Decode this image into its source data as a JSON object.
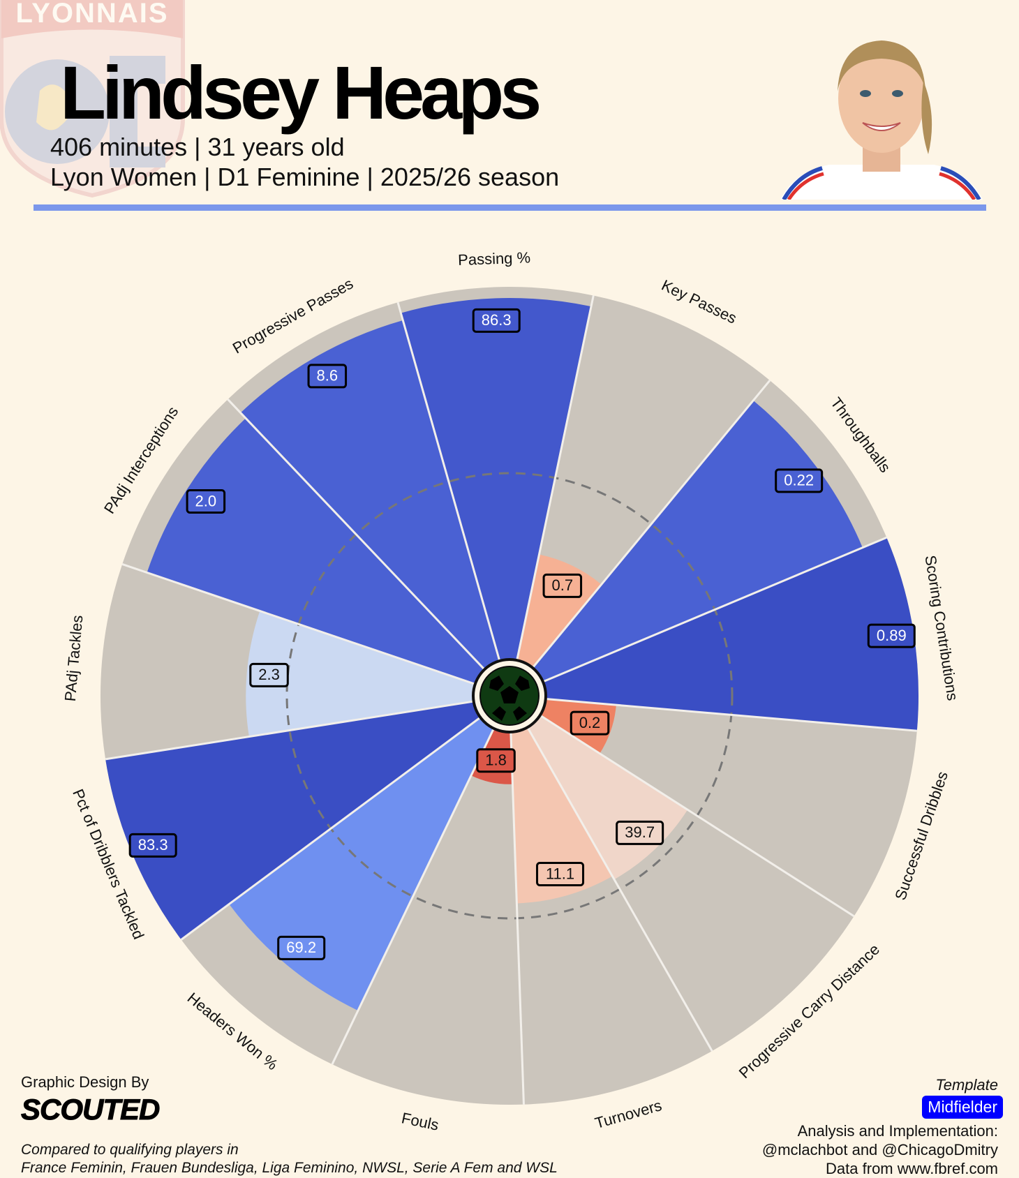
{
  "header": {
    "player_name": "Lindsey Heaps",
    "line1": "406 minutes | 31 years old",
    "line2": "Lyon Women | D1 Feminine | 2025/26 season",
    "crest_text": "OLYMPIQUE LYONNAIS"
  },
  "footer": {
    "credit": "Graphic Design By",
    "brand": "SCOUTED",
    "compared_line1": "Compared to qualifying players in",
    "compared_line2": "France Feminin, Frauen Bundesliga, Liga Feminino, NWSL, Serie A Fem and WSL",
    "template_label": "Template",
    "template_value": "Midfielder",
    "analysis_line1": "Analysis and Implementation:",
    "analysis_line2": "@mclachbot and @ChicagoDmitry",
    "analysis_line3": "Data from www.fbref.com"
  },
  "colors": {
    "background": "#fdf5e6",
    "slice_background": "#cbc5bc",
    "accent_rule": "#7b97eb",
    "badge": "#0000ff"
  },
  "chart_data": {
    "type": "pizza",
    "percentile_range": [
      0,
      100
    ],
    "reference_ring_percentile": 50,
    "metrics": [
      {
        "label": "Passing %",
        "value": "86.3",
        "percentile": 97,
        "color": "#4358cc"
      },
      {
        "label": "Key Passes",
        "value": "0.7",
        "percentile": 29,
        "color": "#f6b194"
      },
      {
        "label": "Throughballs",
        "value": "0.22",
        "percentile": 93,
        "color": "#4a61d3"
      },
      {
        "label": "Scoring Contributions",
        "value": "0.89",
        "percentile": 100,
        "color": "#3a4ec4"
      },
      {
        "label": "Successful Dribbles",
        "value": "0.2",
        "percentile": 19,
        "color": "#ee8263"
      },
      {
        "label": "Progressive Carry Distance",
        "value": "39.7",
        "percentile": 47,
        "color": "#f0d6c9"
      },
      {
        "label": "Turnovers",
        "value": "11.1",
        "percentile": 46,
        "color": "#f4c6b1"
      },
      {
        "label": "Fouls",
        "value": "1.8",
        "percentile": 14,
        "color": "#db5748"
      },
      {
        "label": "Headers Won %",
        "value": "69.2",
        "percentile": 84,
        "color": "#6f90f0"
      },
      {
        "label": "Pct of Dribblers Tackled",
        "value": "83.3",
        "percentile": 100,
        "color": "#3a4ec4"
      },
      {
        "label": "PAdj Tackles",
        "value": "2.3",
        "percentile": 61,
        "color": "#cbd9f2"
      },
      {
        "label": "PAdj Interceptions",
        "value": "2.0",
        "percentile": 93,
        "color": "#4a61d3"
      },
      {
        "label": "Progressive Passes",
        "value": "8.6",
        "percentile": 95,
        "color": "#4a61d3"
      }
    ]
  }
}
